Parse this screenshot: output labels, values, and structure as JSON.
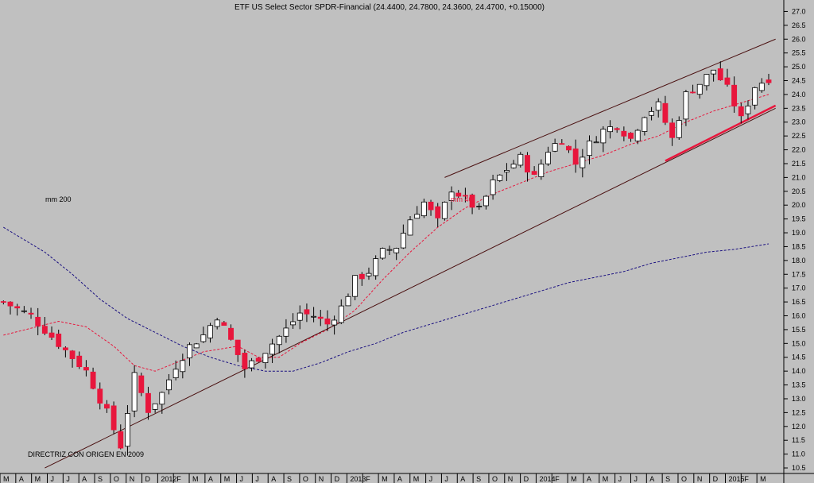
{
  "chart_data": {
    "type": "candlestick",
    "title": "ETF US Select Sector SPDR-Financial (24.4400, 24.7800, 24.3600, 24.4700, +0.15000)",
    "y_ticks": [
      "10.5",
      "11.0",
      "11.5",
      "12.0",
      "12.5",
      "13.0",
      "13.5",
      "14.0",
      "14.5",
      "15.0",
      "15.5",
      "16.0",
      "16.5",
      "17.0",
      "17.5",
      "18.0",
      "18.5",
      "19.0",
      "19.5",
      "20.0",
      "20.5",
      "21.0",
      "21.5",
      "22.0",
      "22.5",
      "23.0",
      "23.5",
      "24.0",
      "24.5",
      "25.0",
      "25.5",
      "26.0",
      "26.5",
      "27.0"
    ],
    "ylim": [
      10.3,
      27.3
    ],
    "x_ticks": [
      "M",
      "A",
      "M",
      "J",
      "J",
      "A",
      "S",
      "O",
      "N",
      "D",
      "2012",
      "F",
      "M",
      "A",
      "M",
      "J",
      "J",
      "A",
      "S",
      "O",
      "N",
      "D",
      "2013",
      "F",
      "M",
      "A",
      "M",
      "J",
      "J",
      "A",
      "S",
      "O",
      "N",
      "D",
      "2014",
      "F",
      "M",
      "A",
      "M",
      "J",
      "J",
      "A",
      "S",
      "O",
      "N",
      "D",
      "2015",
      "F",
      "M"
    ],
    "annotations": {
      "mm200": "mm 200",
      "mm40": "mm 40",
      "trendline": "DIRECTRIZ CON ORIGEN EN 2009"
    },
    "anchors": [
      [
        0,
        16.5
      ],
      [
        4,
        16.0
      ],
      [
        8,
        15.0
      ],
      [
        12,
        14.0
      ],
      [
        15,
        12.5
      ],
      [
        17,
        11.3
      ],
      [
        19,
        13.8
      ],
      [
        21,
        12.6
      ],
      [
        23,
        13.2
      ],
      [
        25,
        14.2
      ],
      [
        27,
        14.9
      ],
      [
        29,
        15.3
      ],
      [
        31,
        16.0
      ],
      [
        33,
        15.1
      ],
      [
        35,
        14.1
      ],
      [
        37,
        14.5
      ],
      [
        39,
        15.0
      ],
      [
        41,
        15.5
      ],
      [
        43,
        16.1
      ],
      [
        45,
        16.0
      ],
      [
        47,
        15.7
      ],
      [
        49,
        16.3
      ],
      [
        51,
        17.3
      ],
      [
        53,
        17.6
      ],
      [
        55,
        18.3
      ],
      [
        57,
        18.5
      ],
      [
        59,
        19.5
      ],
      [
        61,
        20.1
      ],
      [
        63,
        19.4
      ],
      [
        65,
        20.6
      ],
      [
        67,
        20.2
      ],
      [
        69,
        19.8
      ],
      [
        71,
        20.8
      ],
      [
        73,
        21.3
      ],
      [
        75,
        21.7
      ],
      [
        77,
        21.0
      ],
      [
        79,
        22.0
      ],
      [
        81,
        22.4
      ],
      [
        83,
        21.5
      ],
      [
        85,
        22.2
      ],
      [
        87,
        22.7
      ],
      [
        89,
        22.9
      ],
      [
        91,
        22.4
      ],
      [
        93,
        23.3
      ],
      [
        95,
        23.6
      ],
      [
        97,
        22.4
      ],
      [
        99,
        24.0
      ],
      [
        101,
        24.4
      ],
      [
        103,
        24.9
      ],
      [
        105,
        24.2
      ],
      [
        107,
        23.1
      ],
      [
        109,
        24.3
      ],
      [
        111,
        24.6
      ]
    ],
    "mm40": [
      [
        0,
        15.3
      ],
      [
        8,
        15.8
      ],
      [
        12,
        15.6
      ],
      [
        16,
        14.9
      ],
      [
        19,
        14.2
      ],
      [
        22,
        14.0
      ],
      [
        25,
        14.3
      ],
      [
        29,
        14.7
      ],
      [
        34,
        14.9
      ],
      [
        37,
        14.5
      ],
      [
        40,
        14.5
      ],
      [
        43,
        15.0
      ],
      [
        47,
        15.5
      ],
      [
        51,
        16.2
      ],
      [
        55,
        17.3
      ],
      [
        59,
        18.3
      ],
      [
        63,
        19.2
      ],
      [
        67,
        19.9
      ],
      [
        71,
        20.4
      ],
      [
        75,
        20.8
      ],
      [
        79,
        21.2
      ],
      [
        83,
        21.5
      ],
      [
        87,
        21.8
      ],
      [
        91,
        22.2
      ],
      [
        95,
        22.5
      ],
      [
        99,
        23.0
      ],
      [
        103,
        23.4
      ],
      [
        107,
        23.7
      ],
      [
        111,
        24.0
      ]
    ],
    "mm200": [
      [
        0,
        19.2
      ],
      [
        6,
        18.3
      ],
      [
        10,
        17.5
      ],
      [
        14,
        16.6
      ],
      [
        18,
        15.9
      ],
      [
        22,
        15.4
      ],
      [
        26,
        14.9
      ],
      [
        30,
        14.5
      ],
      [
        34,
        14.2
      ],
      [
        38,
        14.0
      ],
      [
        42,
        14.0
      ],
      [
        46,
        14.3
      ],
      [
        50,
        14.7
      ],
      [
        54,
        15.0
      ],
      [
        58,
        15.4
      ],
      [
        62,
        15.7
      ],
      [
        66,
        16.0
      ],
      [
        70,
        16.3
      ],
      [
        74,
        16.6
      ],
      [
        78,
        16.9
      ],
      [
        82,
        17.2
      ],
      [
        86,
        17.4
      ],
      [
        90,
        17.6
      ],
      [
        94,
        17.9
      ],
      [
        98,
        18.1
      ],
      [
        102,
        18.3
      ],
      [
        106,
        18.4
      ],
      [
        111,
        18.6
      ]
    ],
    "trend_lines": [
      {
        "name": "support-2009",
        "from": [
          6,
          10.5
        ],
        "to": [
          112,
          23.5
        ],
        "color": "#4a1010"
      },
      {
        "name": "channel-top",
        "from": [
          64,
          21.0
        ],
        "to": [
          112,
          26.0
        ],
        "color": "#4a1010"
      },
      {
        "name": "red-support",
        "from": [
          96,
          21.6
        ],
        "to": [
          112,
          23.6
        ],
        "color": "#e8163c"
      }
    ]
  }
}
